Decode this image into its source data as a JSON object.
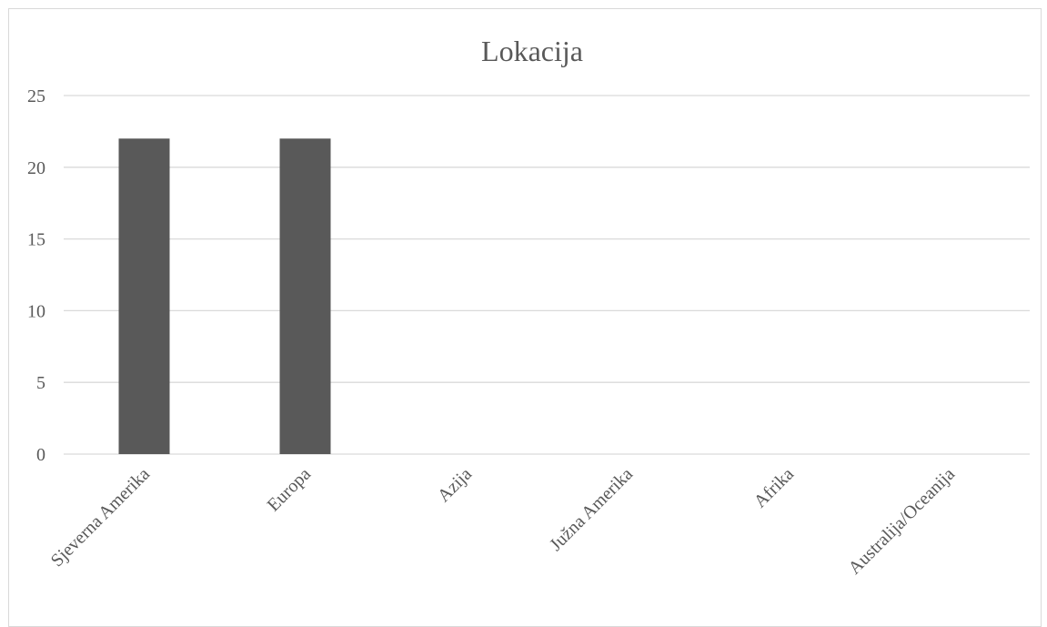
{
  "chart_data": {
    "type": "bar",
    "title": "Lokacija",
    "xlabel": "",
    "ylabel": "",
    "categories": [
      "Sjeverna Amerika",
      "Europa",
      "Azija",
      "Južna Amerika",
      "Afrika",
      "Australija/Oceanija"
    ],
    "values": [
      22,
      22,
      0,
      0,
      0,
      0
    ],
    "ylim": [
      0,
      25
    ],
    "yticks": [
      0,
      5,
      10,
      15,
      20,
      25
    ],
    "grid": true,
    "legend": "none",
    "colors": {
      "bar": "#595959",
      "grid": "#d9d9d9",
      "text": "#595959"
    }
  }
}
